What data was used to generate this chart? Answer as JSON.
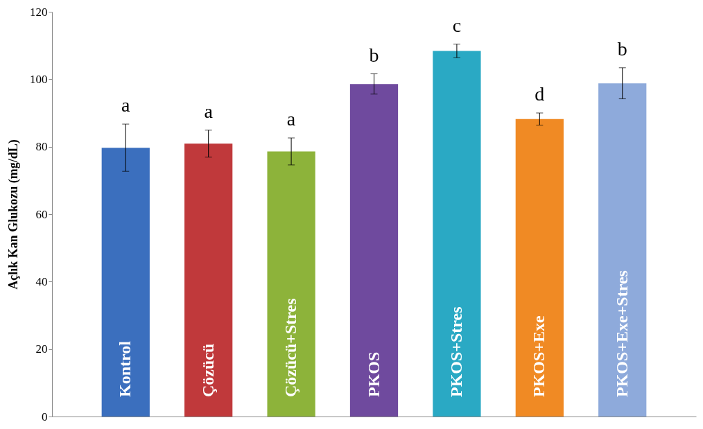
{
  "chart_data": {
    "type": "bar",
    "ylabel": "Açlık Kan Glukozu (mg/dL)",
    "categories": [
      "Kontrol",
      "Çözücü",
      "Çözücü+Stres",
      "PKOS",
      "PKOS+Stres",
      "PKOS+Exe",
      "PKOS+Exe+Stres"
    ],
    "values": [
      79.7,
      80.9,
      78.6,
      98.6,
      108.4,
      88.2,
      98.8
    ],
    "errors": [
      7,
      4,
      4,
      3,
      2,
      1.8,
      4.6
    ],
    "colors": [
      "#3b6fbe",
      "#c0393b",
      "#8db33a",
      "#6f4a9e",
      "#2aa9c4",
      "#f08a24",
      "#8eaadb"
    ],
    "ylim": [
      0,
      120
    ],
    "yticks": [
      0,
      20,
      40,
      60,
      80,
      100,
      120
    ],
    "grid": false,
    "legend": false,
    "annotations": [
      "a",
      "a",
      "a",
      "b",
      "c",
      "d",
      "b"
    ]
  }
}
